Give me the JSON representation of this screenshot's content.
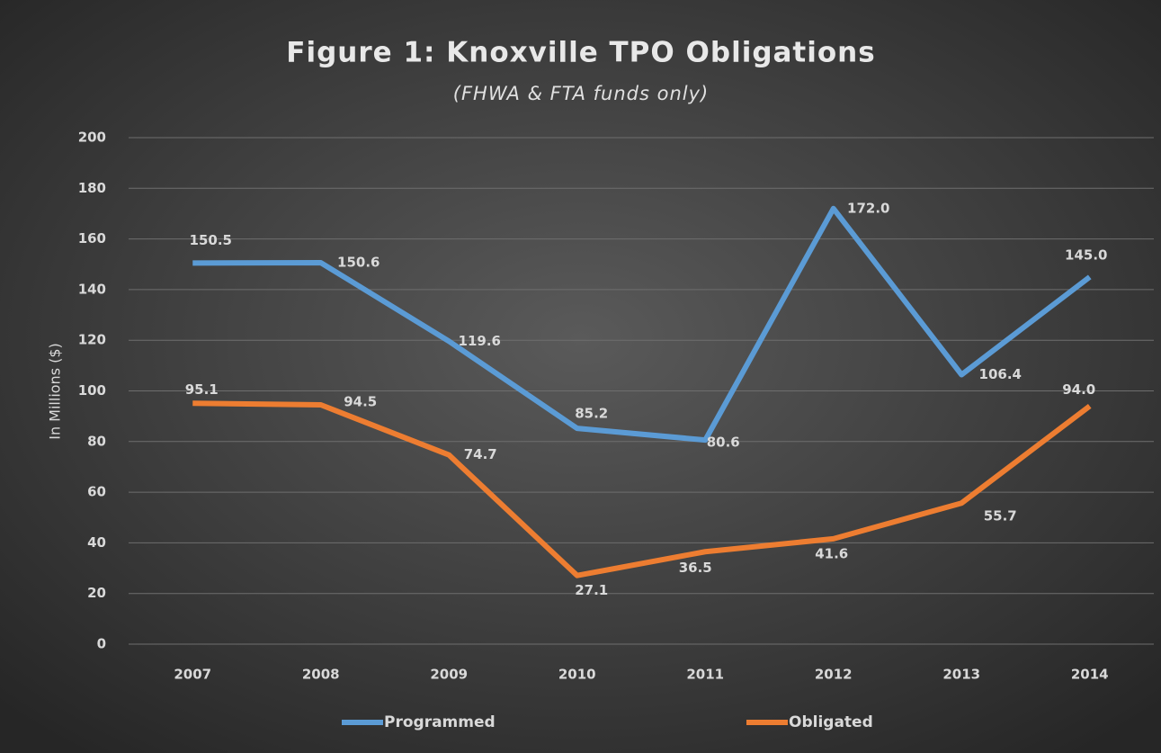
{
  "chart_data": {
    "type": "line",
    "title": "Figure 1: Knoxville TPO Obligations",
    "subtitle": "(FHWA & FTA funds only)",
    "y_label": "In Millions ($)",
    "categories": [
      "2007",
      "2008",
      "2009",
      "2010",
      "2011",
      "2012",
      "2013",
      "2014"
    ],
    "series": [
      {
        "name": "Programmed",
        "color": "#5b9bd5",
        "values": [
          150.5,
          150.6,
          119.6,
          85.2,
          80.6,
          172.0,
          106.4,
          145.0
        ],
        "value_labels": [
          "150.5",
          "150.6",
          "119.6",
          "85.2",
          "80.6",
          "172.0",
          "106.4",
          "145.0"
        ]
      },
      {
        "name": "Obligated",
        "color": "#ed7d31",
        "values": [
          95.1,
          94.5,
          74.7,
          27.1,
          36.5,
          41.6,
          55.7,
          94.0
        ],
        "value_labels": [
          "95.1",
          "94.5",
          "74.7",
          "27.1",
          "36.5",
          "41.6",
          "55.7",
          "94.0"
        ]
      }
    ],
    "ylim": [
      0,
      200
    ],
    "yticks": [
      0,
      20,
      40,
      60,
      80,
      100,
      120,
      140,
      160,
      180,
      200
    ],
    "grid": true,
    "legend": "bottom"
  }
}
